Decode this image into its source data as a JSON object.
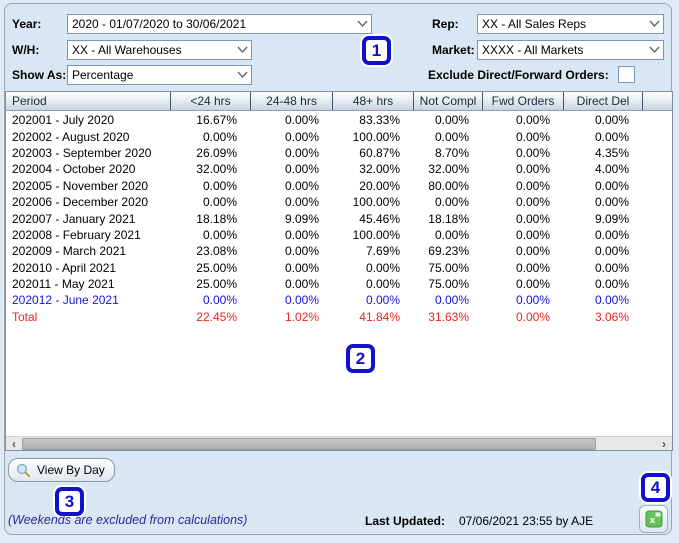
{
  "filters": {
    "year_label": "Year:",
    "year_value": "2020 - 01/07/2020 to 30/06/2021",
    "wh_label": "W/H:",
    "wh_value": "XX - All Warehouses",
    "show_as_label": "Show As:",
    "show_as_value": "Percentage",
    "rep_label": "Rep:",
    "rep_value": "XX - All Sales Reps",
    "market_label": "Market:",
    "market_value": "XXXX - All Markets",
    "exclude_label": "Exclude Direct/Forward Orders:",
    "exclude_checked": false
  },
  "table": {
    "columns": [
      "Period",
      "<24 hrs",
      "24-48 hrs",
      "48+ hrs",
      "Not Compl",
      "Fwd Orders",
      "Direct Del"
    ],
    "rows": [
      {
        "period": "202001 - July 2020",
        "values": [
          "16.67%",
          "0.00%",
          "83.33%",
          "0.00%",
          "0.00%",
          "0.00%"
        ],
        "color": "black"
      },
      {
        "period": "202002 - August 2020",
        "values": [
          "0.00%",
          "0.00%",
          "100.00%",
          "0.00%",
          "0.00%",
          "0.00%"
        ],
        "color": "black"
      },
      {
        "period": "202003 - September 2020",
        "values": [
          "26.09%",
          "0.00%",
          "60.87%",
          "8.70%",
          "0.00%",
          "4.35%"
        ],
        "color": "black"
      },
      {
        "period": "202004 - October 2020",
        "values": [
          "32.00%",
          "0.00%",
          "32.00%",
          "32.00%",
          "0.00%",
          "4.00%"
        ],
        "color": "black"
      },
      {
        "period": "202005 - November 2020",
        "values": [
          "0.00%",
          "0.00%",
          "20.00%",
          "80.00%",
          "0.00%",
          "0.00%"
        ],
        "color": "black"
      },
      {
        "period": "202006 - December 2020",
        "values": [
          "0.00%",
          "0.00%",
          "100.00%",
          "0.00%",
          "0.00%",
          "0.00%"
        ],
        "color": "black"
      },
      {
        "period": "202007 - January 2021",
        "values": [
          "18.18%",
          "9.09%",
          "45.46%",
          "18.18%",
          "0.00%",
          "9.09%"
        ],
        "color": "black"
      },
      {
        "period": "202008 - February 2021",
        "values": [
          "0.00%",
          "0.00%",
          "100.00%",
          "0.00%",
          "0.00%",
          "0.00%"
        ],
        "color": "black"
      },
      {
        "period": "202009 - March 2021",
        "values": [
          "23.08%",
          "0.00%",
          "7.69%",
          "69.23%",
          "0.00%",
          "0.00%"
        ],
        "color": "black"
      },
      {
        "period": "202010 - April 2021",
        "values": [
          "25.00%",
          "0.00%",
          "0.00%",
          "75.00%",
          "0.00%",
          "0.00%"
        ],
        "color": "black"
      },
      {
        "period": "202011 - May 2021",
        "values": [
          "25.00%",
          "0.00%",
          "0.00%",
          "75.00%",
          "0.00%",
          "0.00%"
        ],
        "color": "black"
      },
      {
        "period": "202012 - June 2021",
        "values": [
          "0.00%",
          "0.00%",
          "0.00%",
          "0.00%",
          "0.00%",
          "0.00%"
        ],
        "color": "blue"
      },
      {
        "period": "Total",
        "values": [
          "22.45%",
          "1.02%",
          "41.84%",
          "31.63%",
          "0.00%",
          "3.06%"
        ],
        "color": "red"
      }
    ]
  },
  "scrollbar": {
    "left_arrow": "‹",
    "right_arrow": "›"
  },
  "annotations": {
    "one": "1",
    "two": "2",
    "three": "3",
    "four": "4"
  },
  "footer": {
    "view_by_day_label": "View By Day",
    "weekends_note": "(Weekends are excluded from calculations)",
    "last_updated_label": "Last Updated:",
    "last_updated_value": "07/06/2021 23:55 by AJE"
  }
}
